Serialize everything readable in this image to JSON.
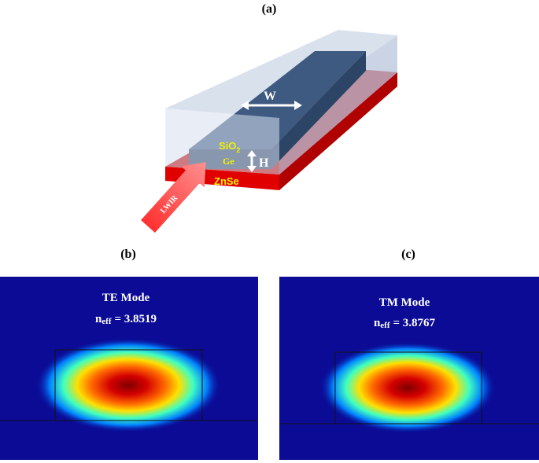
{
  "panel_a": {
    "label": "(a)",
    "width_label": "W",
    "cladding": {
      "base": "SiO",
      "sub": "2"
    },
    "core": "Ge",
    "height_label": "H",
    "substrate": "ZnSe",
    "source": "LWIR"
  },
  "panel_b": {
    "label": "(b)",
    "mode": "TE Mode",
    "neff": {
      "symbol": "n",
      "sub": "eff",
      "value": "= 3.8519"
    }
  },
  "panel_c": {
    "label": "(c)",
    "mode": "TM Mode",
    "neff": {
      "symbol": "n",
      "sub": "eff",
      "value": "= 3.8767"
    }
  }
}
